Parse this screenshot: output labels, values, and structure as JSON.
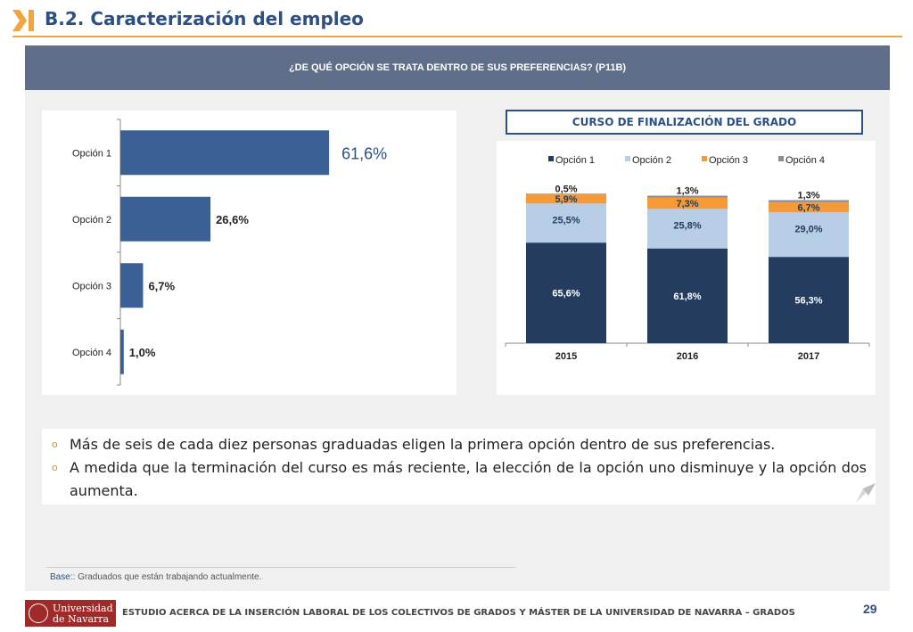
{
  "header": {
    "title": "B.2. Caracterización del empleo",
    "accent": "#f2a443",
    "title_color": "#2b5085"
  },
  "banner": {
    "question": "¿DE QUÉ OPCIÓN SE TRATA DENTRO DE SUS PREFERENCIAS? (P11B)"
  },
  "right_title": "CURSO DE FINALIZACIÓN DEL GRADO",
  "chart_data": [
    {
      "type": "bar",
      "orientation": "horizontal",
      "categories": [
        "Opción 1",
        "Opción 2",
        "Opción 3",
        "Opción 4"
      ],
      "values": [
        61.6,
        26.6,
        6.7,
        1.0
      ],
      "labels": [
        "61,6%",
        "26,6%",
        "6,7%",
        "1,0%"
      ],
      "xlim": [
        0,
        100
      ],
      "color": "#3a6095",
      "grid": false
    },
    {
      "type": "bar",
      "stacked": true,
      "categories": [
        "2015",
        "2016",
        "2017"
      ],
      "series": [
        {
          "name": "Opción 1",
          "values": [
            65.6,
            61.8,
            56.3
          ],
          "labels": [
            "65,6%",
            "61,8%",
            "56,3%"
          ],
          "color": "#243d5f"
        },
        {
          "name": "Opción 2",
          "values": [
            25.5,
            25.8,
            29.0
          ],
          "labels": [
            "25,5%",
            "25,8%",
            "29,0%"
          ],
          "color": "#b8cde6"
        },
        {
          "name": "Opción 3",
          "values": [
            5.9,
            7.3,
            6.7
          ],
          "labels": [
            "5,9%",
            "7,3%",
            "6,7%"
          ],
          "color": "#f59a36"
        },
        {
          "name": "Opción 4",
          "values": [
            0.5,
            1.3,
            1.3
          ],
          "labels": [
            "0,5%",
            "1,3%",
            "1,3%"
          ],
          "color": "#8c8c8c"
        }
      ],
      "ylim": [
        0,
        100
      ],
      "legend": "top",
      "grid": false
    }
  ],
  "bullets": [
    "Más de seis de cada diez personas graduadas eligen la primera opción dentro de sus preferencias.",
    "A medida que la terminación del curso es más reciente, la elección de la opción uno disminuye y la opción dos aumenta."
  ],
  "base": {
    "label": "Base:",
    "text": ": Graduados que están trabajando actualmente."
  },
  "logo": {
    "line1": "Universidad",
    "line2": "de Navarra"
  },
  "footer": {
    "text": "ESTUDIO ACERCA DE LA INSERCIÓN LABORAL DE LOS COLECTIVOS DE GRADOS Y MÁSTER DE LA UNIVERSIDAD DE NAVARRA – GRADOS",
    "page": "29"
  }
}
